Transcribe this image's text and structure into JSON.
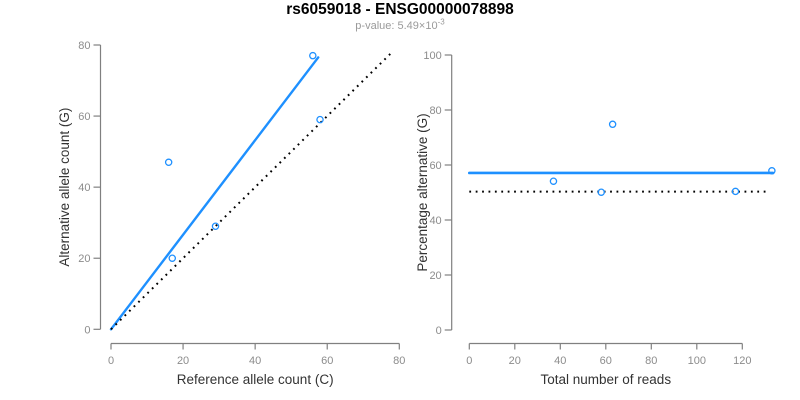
{
  "header": {
    "title": "rs6059018 - ENSG00000078898",
    "subtitle_base": "p-value: 5.49×10",
    "subtitle_exponent": "-3"
  },
  "colors": {
    "accent_blue": "#1E90FF",
    "dotted_black": "#000000",
    "axis_line_gray": "#808080",
    "tick_label_gray": "#8C8C8C",
    "axis_title_dark": "#333333",
    "subtitle_gray": "#9A9A9A",
    "background": "#FFFFFF"
  },
  "chart_data": [
    {
      "type": "scatter",
      "name": "allele-counts",
      "figure_title": "rs6059018 - ENSG00000078898",
      "figure_subtitle": "p-value: 5.49×10^-3",
      "xlabel": "Reference allele count (C)",
      "ylabel": "Alternative allele count (G)",
      "xlim": [
        0,
        80
      ],
      "ylim": [
        0,
        80
      ],
      "xticks": [
        0,
        20,
        40,
        60,
        80
      ],
      "yticks": [
        0,
        20,
        40,
        60,
        80
      ],
      "grid": false,
      "legend": "none",
      "marker": {
        "shape": "open-circle",
        "color": "#1E90FF"
      },
      "points": [
        {
          "x": 16,
          "y": 47
        },
        {
          "x": 17,
          "y": 20
        },
        {
          "x": 29,
          "y": 29
        },
        {
          "x": 56,
          "y": 77
        },
        {
          "x": 58,
          "y": 59
        }
      ],
      "lines": [
        {
          "name": "fit-line",
          "style": "solid",
          "color": "#1E90FF",
          "width": 2.4,
          "x1": 0,
          "y1": 0,
          "x2": 57.5,
          "y2": 76.5
        },
        {
          "name": "identity-line",
          "style": "dotted",
          "color": "#000000",
          "width": 2,
          "x1": 0,
          "y1": 0,
          "x2": 77.5,
          "y2": 77.5
        }
      ]
    },
    {
      "type": "scatter",
      "name": "percentage-vs-reads",
      "xlabel": "Total number of reads",
      "ylabel": "Percentage alternative (G)",
      "xlim": [
        0,
        134
      ],
      "ylim": [
        0,
        100
      ],
      "xticks": [
        0,
        20,
        40,
        60,
        80,
        100,
        120
      ],
      "yticks": [
        0,
        20,
        40,
        60,
        80,
        100
      ],
      "grid": false,
      "legend": "none",
      "marker": {
        "shape": "open-circle",
        "color": "#1E90FF"
      },
      "points": [
        {
          "x": 37,
          "y": 54.1
        },
        {
          "x": 58,
          "y": 50.1
        },
        {
          "x": 63,
          "y": 74.8
        },
        {
          "x": 117,
          "y": 50.4
        },
        {
          "x": 133,
          "y": 57.9
        }
      ],
      "lines": [
        {
          "name": "mean-percentage-line",
          "style": "solid",
          "color": "#1E90FF",
          "width": 2.6,
          "x1": 0,
          "y1": 57.1,
          "x2": 133.5,
          "y2": 57.1
        },
        {
          "name": "expected-50-line",
          "style": "dotted",
          "color": "#000000",
          "width": 2,
          "x1": 0,
          "y1": 50.3,
          "x2": 131,
          "y2": 50.3
        }
      ]
    }
  ]
}
